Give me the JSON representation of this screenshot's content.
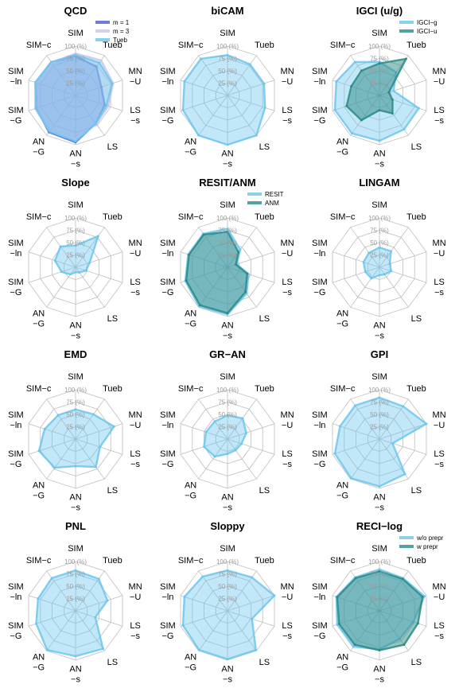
{
  "axes": [
    "SIM",
    "Tueb",
    "MN\n−U",
    "LS\n−s",
    "LS",
    "AN\n−s",
    "AN\n−G",
    "SIM\n−G",
    "SIM\n−ln",
    "SIM−c"
  ],
  "tick_labels": [
    "25 (%)",
    "50 (%)",
    "75 (%)",
    "100 (%)"
  ],
  "colors": {
    "blue": "#4a5fd0",
    "lavender": "#c9c6ea",
    "lightblue": "#6cc6ee",
    "teal": "#2b8a84",
    "grid": "#bdbdbd"
  },
  "chart_data": [
    {
      "type": "radar",
      "title": "QCD",
      "rlim": [
        0,
        100
      ],
      "legend": "top-right",
      "series": [
        {
          "name": "m = 1",
          "color": "#4a5fd0",
          "values": [
            80,
            72,
            55,
            62,
            70,
            95,
            92,
            84,
            85,
            83
          ]
        },
        {
          "name": "m = 3",
          "color": "#c9c6ea",
          "values": [
            85,
            88,
            80,
            70,
            72,
            90,
            90,
            86,
            85,
            82
          ]
        },
        {
          "name": "Tueb",
          "color": "#6cc6ee",
          "values": [
            82,
            82,
            78,
            66,
            70,
            93,
            90,
            85,
            86,
            84
          ]
        }
      ]
    },
    {
      "type": "radar",
      "title": "biCAM",
      "rlim": [
        0,
        100
      ],
      "series": [
        {
          "name": "",
          "color": "#6cc6ee",
          "values": [
            82,
            78,
            78,
            80,
            100,
            100,
            100,
            95,
            92,
            92
          ]
        }
      ]
    },
    {
      "type": "radar",
      "title": "IGCI (u/g)",
      "rlim": [
        0,
        100
      ],
      "legend": "top-right",
      "series": [
        {
          "name": "IGCI−g",
          "color": "#6cc6ee",
          "values": [
            68,
            58,
            30,
            84,
            85,
            92,
            95,
            95,
            92,
            84
          ]
        },
        {
          "name": "IGCI−u",
          "color": "#2b8a84",
          "values": [
            65,
            92,
            20,
            28,
            45,
            30,
            62,
            70,
            60,
            62
          ]
        }
      ]
    },
    {
      "type": "radar",
      "title": "Slope",
      "rlim": [
        0,
        100
      ],
      "series": [
        {
          "name": "",
          "color": "#6cc6ee",
          "values": [
            44,
            78,
            30,
            22,
            13,
            10,
            18,
            30,
            44,
            52
          ]
        }
      ]
    },
    {
      "type": "radar",
      "title": "RESIT/ANM",
      "rlim": [
        0,
        100
      ],
      "legend": "top-right",
      "series": [
        {
          "name": "RESIT",
          "color": "#6cc6ee",
          "values": [
            78,
            44,
            20,
            45,
            66,
            96,
            98,
            90,
            84,
            84
          ]
        },
        {
          "name": "ANM",
          "color": "#2b8a84",
          "values": [
            72,
            38,
            18,
            42,
            62,
            93,
            95,
            88,
            82,
            82
          ]
        }
      ]
    },
    {
      "type": "radar",
      "title": "LINGAM",
      "rlim": [
        0,
        100
      ],
      "series": [
        {
          "name": "",
          "color": "#6cc6ee",
          "values": [
            40,
            40,
            22,
            25,
            18,
            16,
            28,
            30,
            34,
            36
          ]
        }
      ]
    },
    {
      "type": "radar",
      "title": "EMD",
      "rlim": [
        0,
        100
      ],
      "series": [
        {
          "name": "",
          "color": "#6cc6ee",
          "values": [
            60,
            62,
            82,
            52,
            70,
            55,
            72,
            78,
            66,
            60
          ]
        }
      ]
    },
    {
      "type": "radar",
      "title": "GR−AN",
      "rlim": [
        0,
        100
      ],
      "series": [
        {
          "name": "",
          "color": "#6cc6ee",
          "values": [
            48,
            52,
            40,
            30,
            28,
            30,
            44,
            50,
            46,
            44
          ]
        }
      ]
    },
    {
      "type": "radar",
      "title": "GPI",
      "rlim": [
        0,
        100
      ],
      "series": [
        {
          "name": "",
          "color": "#6cc6ee",
          "values": [
            84,
            82,
            100,
            28,
            88,
            96,
            98,
            95,
            84,
            84
          ]
        }
      ]
    },
    {
      "type": "radar",
      "title": "PNL",
      "rlim": [
        0,
        100
      ],
      "series": [
        {
          "name": "",
          "color": "#6cc6ee",
          "values": [
            82,
            80,
            68,
            42,
            95,
            92,
            98,
            84,
            80,
            82
          ]
        }
      ]
    },
    {
      "type": "radar",
      "title": "Sloppy",
      "rlim": [
        0,
        100
      ],
      "series": [
        {
          "name": "",
          "color": "#6cc6ee",
          "values": [
            82,
            84,
            100,
            52,
            98,
            98,
            98,
            95,
            92,
            86
          ]
        }
      ]
    },
    {
      "type": "radar",
      "title": "RECI−log",
      "rlim": [
        0,
        100
      ],
      "legend": "top-right",
      "series": [
        {
          "name": "w/o prepr",
          "color": "#6cc6ee",
          "values": [
            84,
            82,
            96,
            72,
            70,
            78,
            90,
            90,
            92,
            84
          ]
        },
        {
          "name": "w prepr",
          "color": "#2b8a84",
          "values": [
            80,
            80,
            92,
            82,
            85,
            80,
            85,
            86,
            90,
            82
          ]
        }
      ]
    }
  ]
}
